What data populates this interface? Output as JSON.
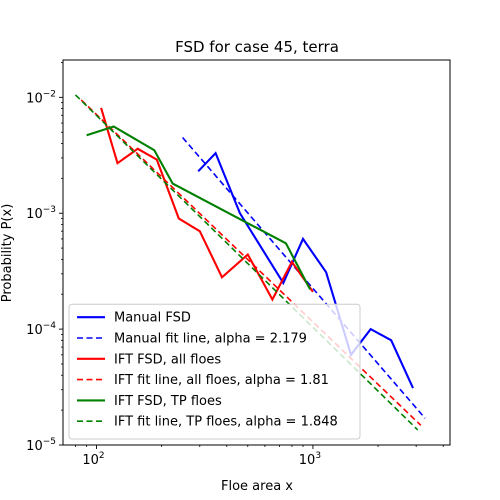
{
  "chart_data": {
    "type": "line",
    "title": "FSD for case 45, terra",
    "xlabel": "Floe area x",
    "ylabel": "Probability P(x)",
    "xscale": "log",
    "yscale": "log",
    "xlim": [
      70,
      4300
    ],
    "ylim": [
      1e-05,
      0.021
    ],
    "x_ticks": [
      {
        "value": 100,
        "base": "10",
        "exp": "2"
      },
      {
        "value": 1000,
        "base": "10",
        "exp": "3"
      }
    ],
    "y_ticks": [
      {
        "value": 1e-05,
        "base": "10",
        "exp": "−5"
      },
      {
        "value": 0.0001,
        "base": "10",
        "exp": "−4"
      },
      {
        "value": 0.001,
        "base": "10",
        "exp": "−3"
      },
      {
        "value": 0.01,
        "base": "10",
        "exp": "−2"
      }
    ],
    "grid": false,
    "legend_position": "lower-left",
    "series": [
      {
        "name": "Manual FSD",
        "color": "#0000ff",
        "style": "solid",
        "x": [
          295,
          355,
          460,
          730,
          900,
          1150,
          1500,
          1850,
          2300,
          2900
        ],
        "y": [
          0.0023,
          0.0033,
          0.001,
          0.00025,
          0.0006,
          0.00031,
          6e-05,
          0.0001,
          8e-05,
          3.1e-05
        ]
      },
      {
        "name": "Manual fit line, alpha = 2.179",
        "color": "#0000ff",
        "style": "dashed",
        "x": [
          250,
          3300
        ],
        "y": [
          0.0045,
          1.7e-05
        ]
      },
      {
        "name": "IFT FSD, all floes",
        "color": "#ff0000",
        "style": "solid",
        "x": [
          105,
          125,
          155,
          190,
          240,
          300,
          380,
          500,
          650,
          800,
          1000
        ],
        "y": [
          0.0081,
          0.0027,
          0.0036,
          0.0029,
          0.0009,
          0.0007,
          0.00028,
          0.00044,
          0.00018,
          0.00038,
          0.00021
        ]
      },
      {
        "name": "IFT fit line, all floes, alpha = 1.81",
        "color": "#ff0000",
        "style": "dashed",
        "x": [
          85,
          3150
        ],
        "y": [
          0.0095,
          1.48e-05
        ]
      },
      {
        "name": "IFT FSD, TP floes",
        "color": "#008000",
        "style": "solid",
        "x": [
          90,
          120,
          185,
          225,
          750,
          970
        ],
        "y": [
          0.0047,
          0.0056,
          0.0035,
          0.0018,
          0.00055,
          0.00022
        ]
      },
      {
        "name": "IFT fit line, TP floes, alpha = 1.848",
        "color": "#008000",
        "style": "dashed",
        "x": [
          80,
          3050
        ],
        "y": [
          0.0105,
          1.35e-05
        ]
      }
    ]
  }
}
